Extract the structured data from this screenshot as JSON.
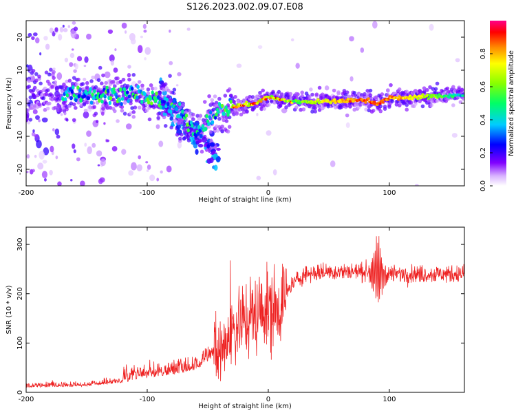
{
  "title": "S126.2023.002.09.07.E08",
  "chart_data": [
    {
      "type": "heatmap",
      "xlabel": "Height of straight line (km)",
      "ylabel": "Frequency (Hz)",
      "xlim": [
        -200,
        162
      ],
      "ylim": [
        -25,
        25
      ],
      "xticks": [
        -200,
        -100,
        0,
        100
      ],
      "yticks": [
        -20,
        -10,
        0,
        10,
        20
      ],
      "colorbar": {
        "label": "Normalized spectral amplitude",
        "range": [
          0,
          1
        ],
        "ticks": [
          0.0,
          0.2,
          0.4,
          0.6,
          0.8
        ]
      },
      "ridge": [
        {
          "x": -200,
          "y": 3
        },
        {
          "x": -170,
          "y": 3
        },
        {
          "x": -140,
          "y": 2.5
        },
        {
          "x": -120,
          "y": 3
        },
        {
          "x": -100,
          "y": 2
        },
        {
          "x": -85,
          "y": 0
        },
        {
          "x": -70,
          "y": -4
        },
        {
          "x": -60,
          "y": -10
        },
        {
          "x": -50,
          "y": -5
        },
        {
          "x": -40,
          "y": -2
        },
        {
          "x": -30,
          "y": -1
        },
        {
          "x": -20,
          "y": -0.5
        },
        {
          "x": -10,
          "y": 0
        },
        {
          "x": 0,
          "y": 2
        },
        {
          "x": 10,
          "y": 1
        },
        {
          "x": 20,
          "y": 0.5
        },
        {
          "x": 50,
          "y": 0.5
        },
        {
          "x": 80,
          "y": 1
        },
        {
          "x": 90,
          "y": 0
        },
        {
          "x": 100,
          "y": 1.5
        },
        {
          "x": 130,
          "y": 2
        },
        {
          "x": 162,
          "y": 2.5
        }
      ]
    },
    {
      "type": "line",
      "xlabel": "Height of straight line (km)",
      "ylabel": "SNR (10 * v/v)",
      "xlim": [
        -200,
        162
      ],
      "ylim": [
        0,
        335
      ],
      "xticks": [
        -200,
        -100,
        0,
        100
      ],
      "yticks": [
        0,
        100,
        200,
        300
      ],
      "series": [
        {
          "color": "#ee2222",
          "trend": [
            {
              "x": -200,
              "y": 10
            },
            {
              "x": -150,
              "y": 12
            },
            {
              "x": -120,
              "y": 20
            },
            {
              "x": -100,
              "y": 30
            },
            {
              "x": -80,
              "y": 35
            },
            {
              "x": -60,
              "y": 45
            },
            {
              "x": -40,
              "y": 80
            },
            {
              "x": -30,
              "y": 130
            },
            {
              "x": -20,
              "y": 150
            },
            {
              "x": -10,
              "y": 160
            },
            {
              "x": 0,
              "y": 170
            },
            {
              "x": 10,
              "y": 180
            },
            {
              "x": 20,
              "y": 220
            },
            {
              "x": 30,
              "y": 240
            },
            {
              "x": 50,
              "y": 245
            },
            {
              "x": 80,
              "y": 245
            },
            {
              "x": 100,
              "y": 240
            },
            {
              "x": 130,
              "y": 240
            },
            {
              "x": 162,
              "y": 240
            }
          ]
        }
      ]
    }
  ]
}
